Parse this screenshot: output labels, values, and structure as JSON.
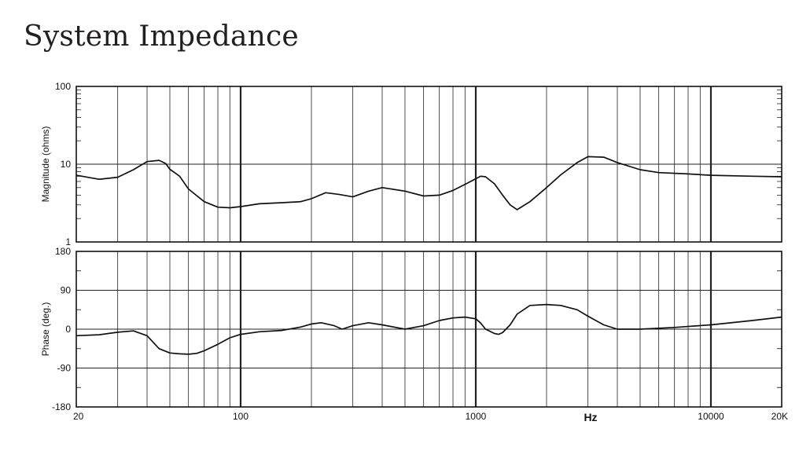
{
  "page": {
    "title": "System Impedance"
  },
  "chart_data": [
    {
      "type": "line",
      "xscale": "log",
      "yscale": "log",
      "xlim": [
        20,
        20000
      ],
      "ylim": [
        1,
        100
      ],
      "ylabel": "Magnitude (ohms)",
      "ytick_labels": [
        "100",
        "10",
        "1"
      ],
      "grid": true,
      "series": [
        {
          "x": [
            20,
            25,
            30,
            35,
            40,
            45,
            48,
            50,
            53,
            55,
            60,
            70,
            80,
            90,
            100,
            120,
            150,
            180,
            200,
            230,
            260,
            300,
            350,
            400,
            500,
            600,
            700,
            800,
            900,
            1000,
            1050,
            1100,
            1200,
            1300,
            1400,
            1500,
            1700,
            2000,
            2300,
            2700,
            3000,
            3500,
            4000,
            5000,
            6000,
            8000,
            10000,
            15000,
            20000
          ],
          "values": [
            7.2,
            6.4,
            6.8,
            8.5,
            10.8,
            11.2,
            10.2,
            8.6,
            7.6,
            7.0,
            4.8,
            3.3,
            2.8,
            2.75,
            2.85,
            3.1,
            3.2,
            3.3,
            3.6,
            4.3,
            4.1,
            3.8,
            4.5,
            5.0,
            4.5,
            3.9,
            4.0,
            4.6,
            5.5,
            6.5,
            7.0,
            6.9,
            5.6,
            4.0,
            3.0,
            2.6,
            3.3,
            5.0,
            7.3,
            10.5,
            12.5,
            12.3,
            10.5,
            8.5,
            7.8,
            7.5,
            7.2,
            7.0,
            6.9
          ]
        }
      ]
    },
    {
      "type": "line",
      "xscale": "log",
      "xlim": [
        20,
        20000
      ],
      "ylim": [
        -180,
        180
      ],
      "ylabel": "Phase (deg.)",
      "xlabel": "Hz",
      "ytick_labels": [
        "180",
        "90",
        "0",
        "-90",
        "-180"
      ],
      "xtick_labels": [
        "20",
        "100",
        "1000",
        "10000",
        "20K"
      ],
      "grid": true,
      "series": [
        {
          "x": [
            20,
            25,
            30,
            35,
            40,
            45,
            50,
            55,
            60,
            65,
            70,
            80,
            90,
            100,
            120,
            150,
            180,
            200,
            220,
            250,
            270,
            300,
            350,
            400,
            500,
            600,
            700,
            800,
            900,
            1000,
            1050,
            1100,
            1200,
            1250,
            1300,
            1400,
            1500,
            1700,
            2000,
            2300,
            2700,
            3000,
            3500,
            4000,
            5000,
            7000,
            10000,
            15000,
            20000
          ],
          "values": [
            -15,
            -13,
            -7,
            -4,
            -15,
            -45,
            -55,
            -57,
            -58,
            -56,
            -50,
            -35,
            -20,
            -12,
            -6,
            -3,
            5,
            12,
            15,
            8,
            0,
            8,
            15,
            10,
            0,
            8,
            20,
            26,
            28,
            24,
            14,
            0,
            -10,
            -12,
            -8,
            10,
            35,
            55,
            57,
            55,
            45,
            30,
            10,
            0,
            0,
            4,
            10,
            20,
            28
          ]
        }
      ]
    }
  ]
}
